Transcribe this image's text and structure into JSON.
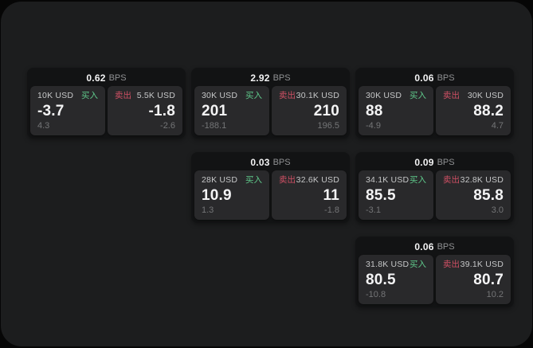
{
  "colors": {
    "background": "#060606",
    "panel": "#1c1d1e",
    "card_bg": "#121314",
    "tile_bg": "#29292b",
    "text_primary": "#f4f4f5",
    "text_secondary": "#c6c7c8",
    "text_muted": "#747577",
    "text_muted2": "#909193",
    "buy_green": "#5fc98b",
    "sell_red": "#cf5064"
  },
  "labels": {
    "bps_suffix": "BPS",
    "buy": "买入",
    "sell": "卖出"
  },
  "cards": [
    {
      "row": 1,
      "col": 1,
      "bps": "0.62",
      "buy": {
        "size": "10K USD",
        "price": "-3.7",
        "delta": "4.3"
      },
      "sell": {
        "size": "5.5K USD",
        "price": "-1.8",
        "delta": "-2.6"
      }
    },
    {
      "row": 1,
      "col": 2,
      "bps": "2.92",
      "buy": {
        "size": "30K USD",
        "price": "201",
        "delta": "-188.1"
      },
      "sell": {
        "size": "30.1K USD",
        "price": "210",
        "delta": "196.5"
      }
    },
    {
      "row": 1,
      "col": 3,
      "bps": "0.06",
      "buy": {
        "size": "30K USD",
        "price": "88",
        "delta": "-4.9"
      },
      "sell": {
        "size": "30K USD",
        "price": "88.2",
        "delta": "4.7"
      }
    },
    {
      "row": 2,
      "col": 2,
      "bps": "0.03",
      "buy": {
        "size": "28K USD",
        "price": "10.9",
        "delta": "1.3"
      },
      "sell": {
        "size": "32.6K USD",
        "price": "11",
        "delta": "-1.8"
      }
    },
    {
      "row": 2,
      "col": 3,
      "bps": "0.09",
      "buy": {
        "size": "34.1K USD",
        "price": "85.5",
        "delta": "-3.1"
      },
      "sell": {
        "size": "32.8K USD",
        "price": "85.8",
        "delta": "3.0"
      }
    },
    {
      "row": 3,
      "col": 3,
      "bps": "0.06",
      "buy": {
        "size": "31.8K USD",
        "price": "80.5",
        "delta": "-10.8"
      },
      "sell": {
        "size": "39.1K USD",
        "price": "80.7",
        "delta": "10.2"
      }
    }
  ]
}
